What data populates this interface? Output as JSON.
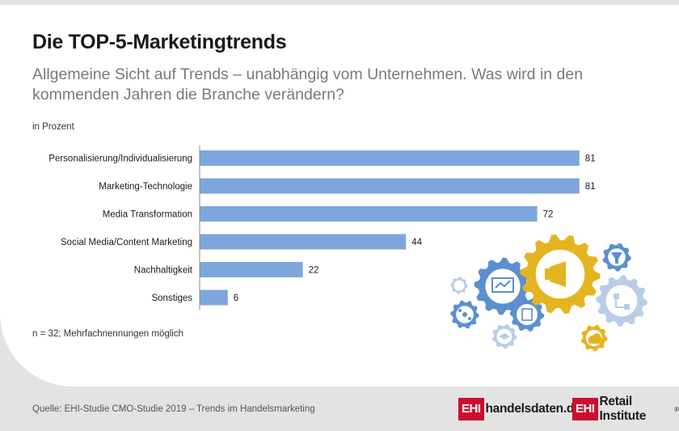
{
  "header": {
    "title": "Die TOP-5-Marketingtrends",
    "subtitle": "Allgemeine Sicht auf Trends – unabhängig vom Unternehmen. Was wird in den kommenden Jahren die Branche verändern?"
  },
  "unit_label": "in Prozent",
  "footnote": "n = 32; Mehrfachnennungen möglich",
  "source": "Quelle: EHI-Studie CMO-Studie 2019 – Trends im Handelsmarketing",
  "logos": {
    "left_box": "EHI",
    "left_text": "handelsdaten.de",
    "right_box": "EHI",
    "right_text": "Retail Institute",
    "right_mark": "®"
  },
  "colors": {
    "bar": "#7da7dc",
    "gear_blue": "#5b8fcf",
    "gear_gold": "#e6b422",
    "gear_light": "#b9cde8",
    "brand_red": "#c8102e"
  },
  "chart_data": {
    "type": "bar",
    "orientation": "horizontal",
    "categories": [
      "Personalisierung/Individualisierung",
      "Marketing-Technologie",
      "Media Transformation",
      "Social Media/Content Marketing",
      "Nachhaltigkeit",
      "Sonstiges"
    ],
    "values": [
      81,
      81,
      72,
      44,
      22,
      6
    ],
    "xlim": [
      0,
      100
    ],
    "grid": false,
    "legend": "none"
  },
  "illustration": {
    "icons": [
      "presentation-icon",
      "megaphone-icon",
      "funnel-icon",
      "flowchart-icon",
      "network-icon",
      "calculator-icon",
      "graduation-cap-icon",
      "cloud-icon"
    ]
  }
}
